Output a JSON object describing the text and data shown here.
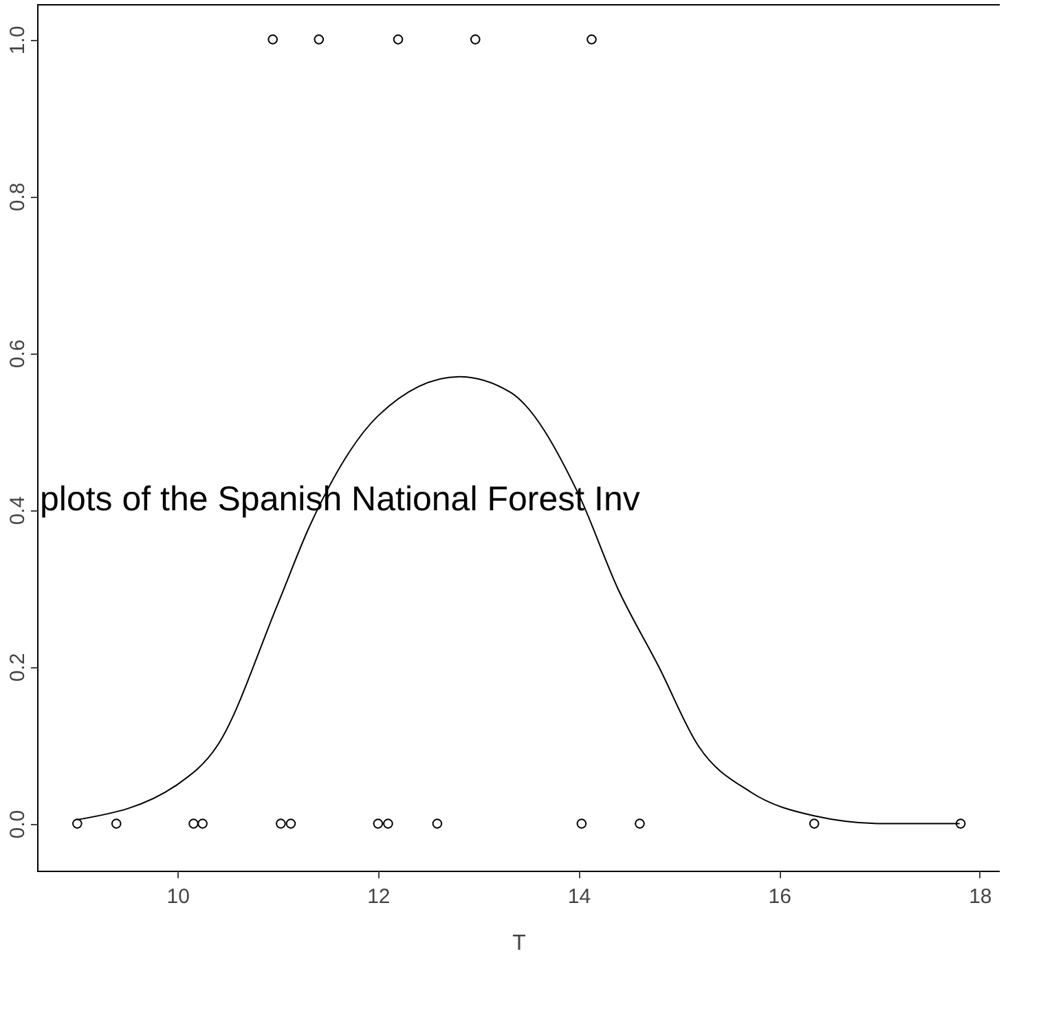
{
  "chart_data": {
    "type": "scatter",
    "xlabel": "T",
    "xlim": [
      8.6,
      18.2
    ],
    "xticks": [
      10,
      12,
      14,
      16,
      18
    ],
    "ylim": [
      -0.06,
      1.045
    ],
    "yticks": [
      {
        "value": 0,
        "label": "0.0"
      },
      0.2,
      0.4,
      0.6,
      0.8,
      {
        "value": 1,
        "label": "1.0"
      }
    ],
    "grid": false,
    "annotations": [
      "plots of the Spanish National Forest Inv"
    ],
    "series": [
      {
        "type": "scatter",
        "marker": "circle",
        "color": "#000000",
        "x": [
          9.0,
          9.39,
          10.16,
          10.25,
          11.03,
          11.13,
          12.0,
          12.1,
          12.59,
          14.03,
          14.61,
          16.35,
          17.81,
          10.95,
          11.41,
          12.2,
          12.97,
          14.13
        ],
        "values": [
          0,
          0,
          0,
          0,
          0,
          0,
          0,
          0,
          0,
          0,
          0,
          0,
          0,
          1,
          1,
          1,
          1,
          1
        ]
      },
      {
        "type": "line",
        "marker": "none",
        "color": "#000000",
        "x": [
          9.0,
          10.0,
          10.4,
          11.0,
          11.32,
          12.0,
          12.81,
          13.32,
          14.0,
          14.39,
          14.8,
          15.19,
          15.72,
          16.35,
          17.05,
          17.8
        ],
        "values": [
          0.005,
          0.05,
          0.1,
          0.28,
          0.38,
          0.52,
          0.57,
          0.55,
          0.42,
          0.3,
          0.2,
          0.1,
          0.04,
          0.01,
          0.0,
          0.0
        ]
      }
    ]
  }
}
